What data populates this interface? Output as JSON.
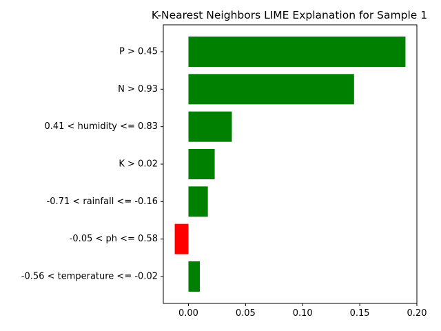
{
  "chart_data": {
    "type": "bar",
    "orientation": "horizontal",
    "title": "K-Nearest Neighbors LIME Explanation for Sample 1",
    "xlabel": "",
    "ylabel": "",
    "xlim": [
      -0.022,
      0.2
    ],
    "xticks": [
      "0.00",
      "0.05",
      "0.10",
      "0.15",
      "0.20"
    ],
    "categories": [
      "P > 0.45",
      "N > 0.93",
      "0.41 < humidity <= 0.83",
      "K > 0.02",
      "-0.71 < rainfall <= -0.16",
      "-0.05 < ph <= 0.58",
      "-0.56 < temperature <= -0.02"
    ],
    "values": [
      0.19,
      0.145,
      0.038,
      0.023,
      0.017,
      -0.012,
      0.01
    ],
    "positive_color": "#008000",
    "negative_color": "#ff0000",
    "grid": false,
    "legend": "none"
  }
}
